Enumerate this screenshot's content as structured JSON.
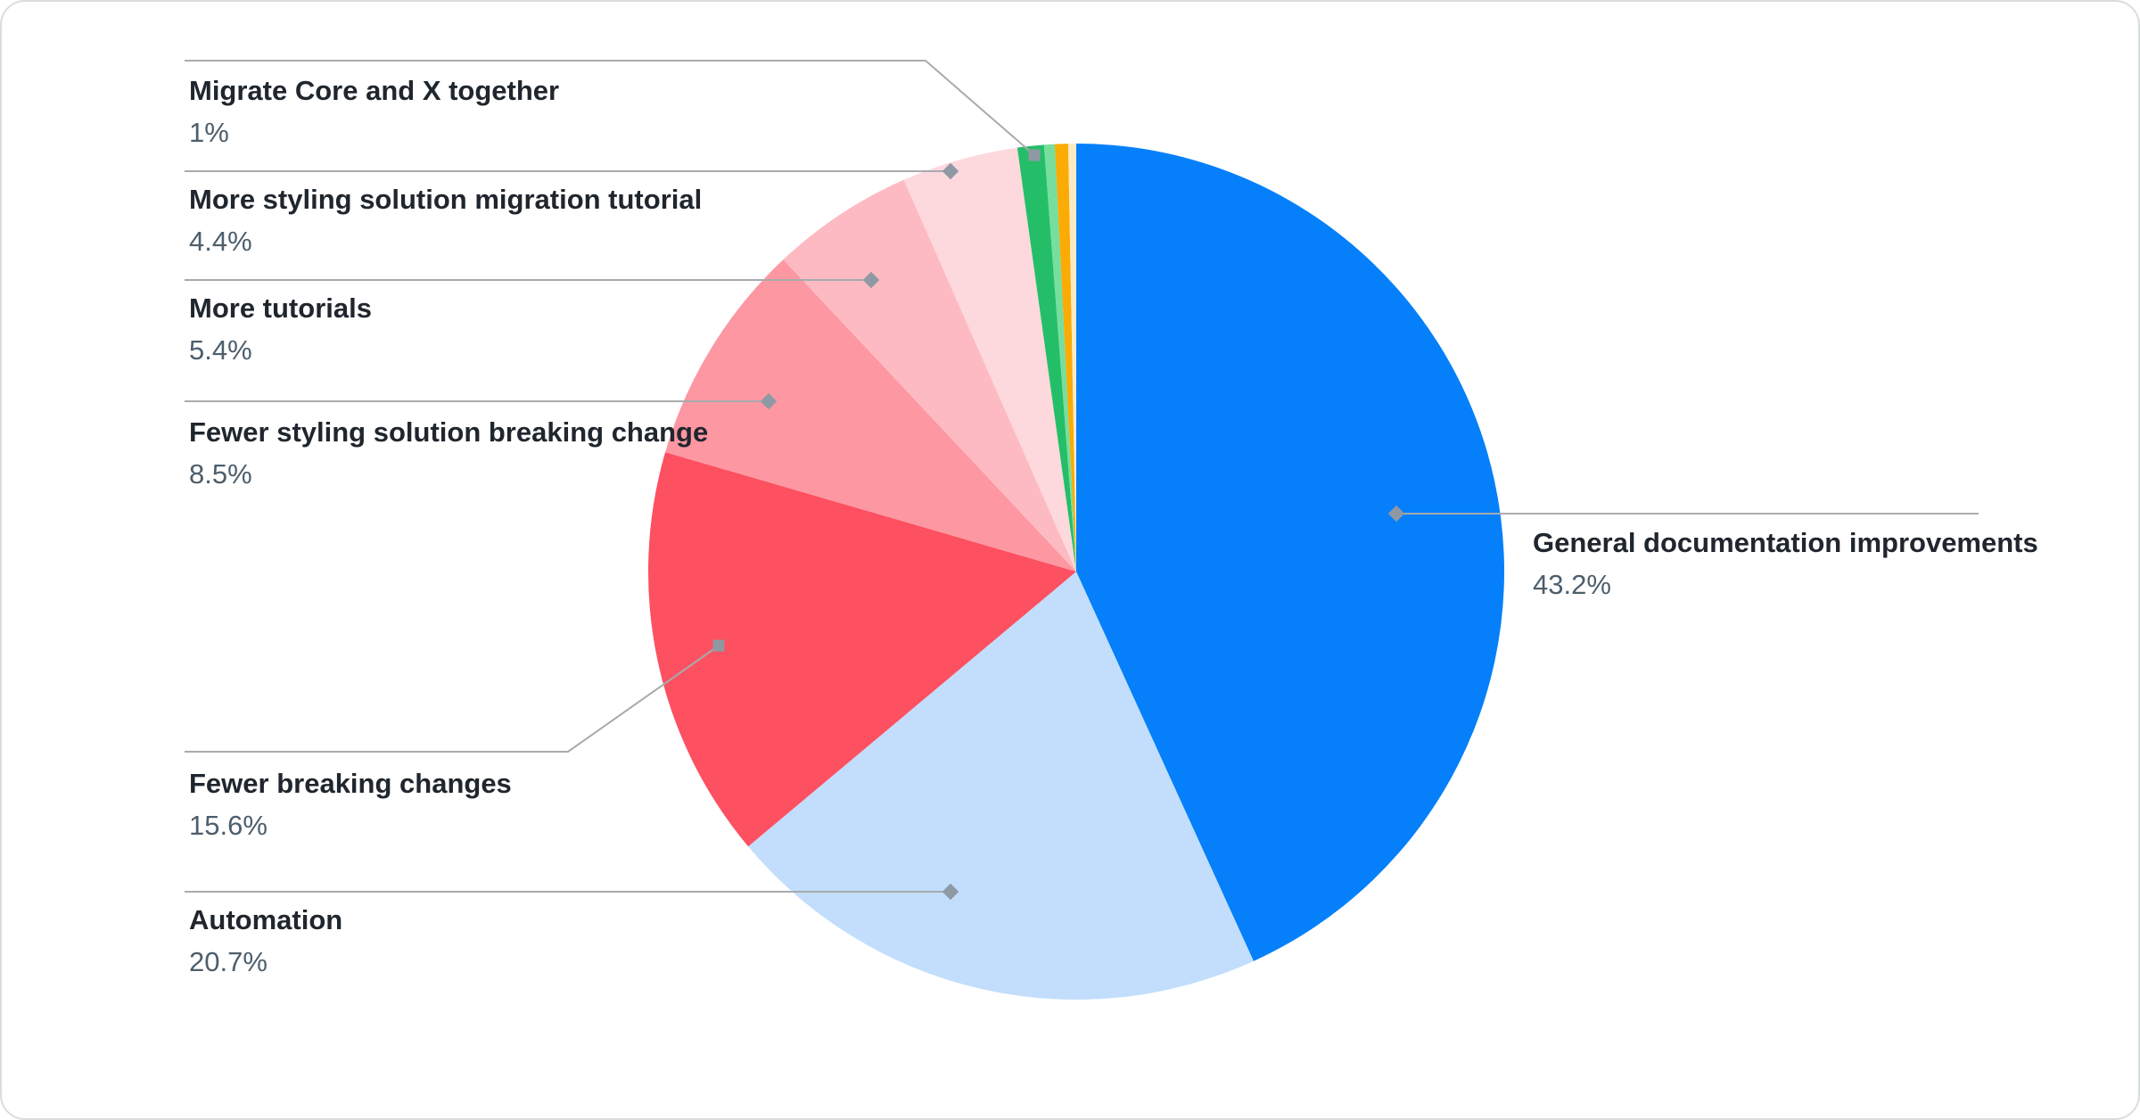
{
  "chart_data": {
    "type": "pie",
    "title": "",
    "direction": "clockwise",
    "start_angle_deg": 0,
    "legend_position": "callout-labels",
    "slices": [
      {
        "label": "General documentation improvements",
        "value": 43.2,
        "display": "43.2%",
        "color": "#0580FA"
      },
      {
        "label": "Automation",
        "value": 20.7,
        "display": "20.7%",
        "color": "#C2DEFC"
      },
      {
        "label": "Fewer breaking changes",
        "value": 15.6,
        "display": "15.6%",
        "color": "#FD5061"
      },
      {
        "label": "Fewer styling solution breaking change",
        "value": 8.5,
        "display": "8.5%",
        "color": "#FD97A1"
      },
      {
        "label": "More tutorials",
        "value": 5.4,
        "display": "5.4%",
        "color": "#FEBAC2"
      },
      {
        "label": "More styling solution migration tutorial",
        "value": 4.4,
        "display": "4.4%",
        "color": "#FDD8DD"
      },
      {
        "label": "Migrate Core and X together",
        "value": 1.0,
        "display": "1%",
        "color": "#25BE68"
      },
      {
        "label": "",
        "value": 0.4,
        "display": "",
        "color": "#76DF9E"
      },
      {
        "label": "",
        "value": 0.5,
        "display": "",
        "color": "#FAAB05"
      },
      {
        "label": "",
        "value": 0.3,
        "display": "",
        "color": "#FAEAC4"
      }
    ],
    "colors": {
      "leader_line": "#a8abae",
      "marker": "#8f99a4",
      "label_text": "#20262e",
      "percent_text": "#4d5e6c"
    }
  }
}
